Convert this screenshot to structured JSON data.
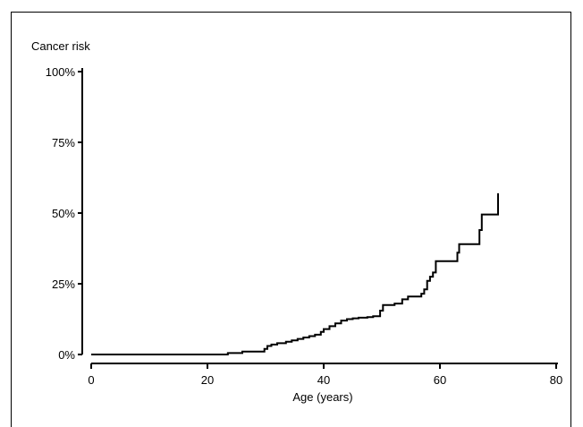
{
  "chart_data": {
    "type": "line",
    "step": true,
    "ylabel": "Cancer risk",
    "xlabel": "Age (years)",
    "xlim": [
      0,
      80
    ],
    "ylim": [
      0,
      100
    ],
    "x_ticks": [
      0,
      20,
      40,
      60,
      80
    ],
    "y_ticks": [
      0,
      25,
      50,
      75,
      100
    ],
    "y_tick_labels": [
      "0%",
      "25%",
      "50%",
      "75%",
      "100%"
    ],
    "x_tick_labels": [
      "0",
      "20",
      "40",
      "60",
      "80"
    ],
    "grid": false,
    "series": [
      {
        "x": [
          0,
          23.5,
          26,
          29.8,
          30.3,
          31,
          32,
          33.5,
          34.5,
          35.5,
          36.5,
          37.5,
          38.5,
          39.5,
          40,
          41,
          42,
          43,
          44,
          45,
          46,
          47.5,
          48.5,
          49.7,
          50.2,
          52.2,
          53.5,
          54.5,
          56.8,
          57.3,
          57.8,
          58.3,
          58.8,
          59.3,
          59.7,
          63,
          63.3,
          66.8,
          67.2,
          70
        ],
        "y": [
          0,
          0.5,
          1,
          2,
          3,
          3.5,
          4,
          4.5,
          5,
          5.5,
          6,
          6.5,
          7,
          8,
          9,
          10,
          11,
          12,
          12.5,
          12.8,
          13,
          13.2,
          13.5,
          15.5,
          17.5,
          18,
          19.5,
          20.5,
          21.5,
          23,
          26,
          27.5,
          29,
          33,
          33,
          36,
          39,
          44,
          49.5,
          57
        ]
      }
    ]
  }
}
